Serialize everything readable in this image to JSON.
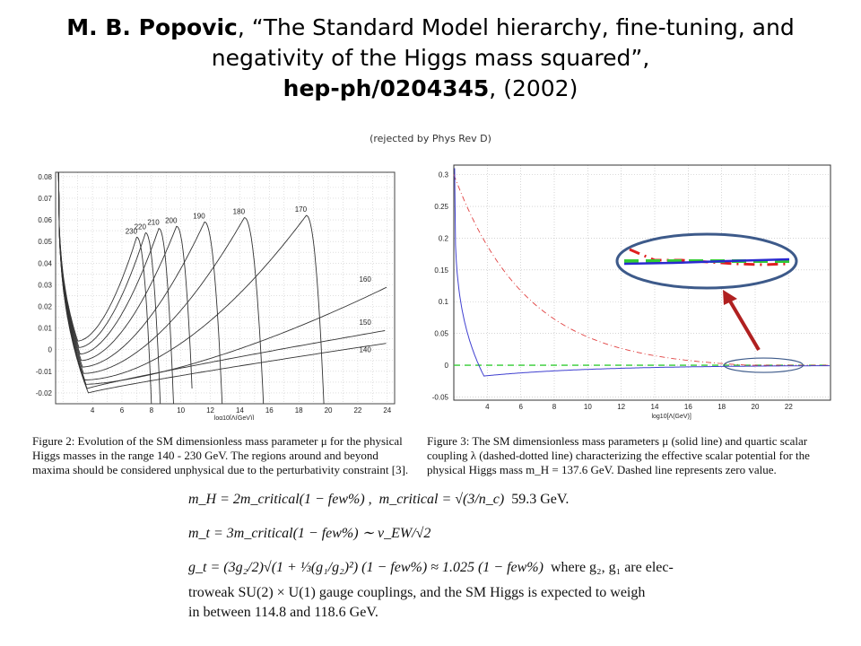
{
  "title": {
    "author": "M. B. Popovic",
    "comma": ",",
    "paper_title": "“The Standard Model hierarchy, fine-tuning, and negativity of the Higgs mass squared”,",
    "arxiv": "hep-ph/0204345",
    "year": ", (2002)"
  },
  "note": "(rejected by Phys Rev D)",
  "fig2_caption": "Figure 2: Evolution of the SM dimensionless mass parameter μ for the physical Higgs masses in the range 140 - 230 GeV. The regions around and beyond maxima should be considered unphysical due to the perturbativity constraint [3].",
  "fig3_caption": "Figure 3: The SM dimensionless mass parameters μ (solid line) and quartic scalar coupling λ (dashed-dotted line) characterizing the effective scalar potential for the physical Higgs mass m_H = 137.6 GeV. Dashed line represents zero value.",
  "eq1": {
    "lhs": "m_H = 2m_critical(1 − few%) ,",
    "mid": "m_critical = √(3/n_c)",
    "val": "59.3 GeV."
  },
  "eq2": "m_t = 3m_critical(1 − few%) ∼ v_EW/√2",
  "eq3": {
    "formula": "g_t = (3g₂/2)√(1 + ⅓(g₁/g₂)²) (1 − few%) ≈ 1.025 (1 − few%)",
    "tail": "where g₂, g₁ are elec-",
    "line2": "troweak SU(2) × U(1) gauge couplings, and the SM Higgs is expected to weigh",
    "line3": "in between 114.8 and 118.6 GeV."
  },
  "chart_data": [
    {
      "type": "line",
      "xlabel": "log10[Λ(GeV)]",
      "ylabel": "",
      "xlim": [
        1.5,
        24.5
      ],
      "ylim": [
        -0.025,
        0.082
      ],
      "xticks": [
        4,
        6,
        8,
        10,
        12,
        14,
        16,
        18,
        20,
        22,
        24
      ],
      "yticks": [
        -0.02,
        -0.01,
        0,
        0.01,
        0.02,
        0.03,
        0.04,
        0.05,
        0.06,
        0.07,
        0.08
      ],
      "grid": true,
      "curve_labels": [
        "230",
        "220",
        "210",
        "200",
        "190",
        "180",
        "170",
        "160",
        "150",
        "140"
      ],
      "series": [
        {
          "name": "230",
          "peak_x": 7.0,
          "peak_y": 0.052,
          "end_x": 8.0,
          "min_y": 0.004
        },
        {
          "name": "220",
          "peak_x": 7.6,
          "peak_y": 0.054,
          "end_x": 8.6,
          "min_y": 0.001
        },
        {
          "name": "210",
          "peak_x": 8.5,
          "peak_y": 0.056,
          "end_x": 9.5,
          "min_y": -0.002
        },
        {
          "name": "200",
          "peak_x": 9.7,
          "peak_y": 0.057,
          "end_x": 10.8,
          "min_y": -0.005
        },
        {
          "name": "190",
          "peak_x": 11.6,
          "peak_y": 0.059,
          "end_x": 12.8,
          "min_y": -0.008
        },
        {
          "name": "180",
          "peak_x": 14.3,
          "peak_y": 0.061,
          "end_x": 15.6,
          "min_y": -0.011
        },
        {
          "name": "170",
          "peak_x": 18.5,
          "peak_y": 0.062,
          "end_x": 19.7,
          "min_y": -0.014
        },
        {
          "name": "160",
          "end_y": 0.029,
          "min_y": -0.016
        },
        {
          "name": "150",
          "end_y": 0.009,
          "min_y": -0.018
        },
        {
          "name": "140",
          "end_y": 0.003,
          "min_y": -0.02
        }
      ]
    },
    {
      "type": "line",
      "xlabel": "log10[Λ(GeV)]",
      "ylabel": "",
      "xlim": [
        2,
        24.5
      ],
      "ylim": [
        -0.055,
        0.315
      ],
      "xticks": [
        4,
        6,
        8,
        10,
        12,
        14,
        16,
        18,
        20,
        22
      ],
      "yticks": [
        -0.05,
        0,
        0.05,
        0.1,
        0.15,
        0.2,
        0.25,
        0.3
      ],
      "grid": true,
      "series": [
        {
          "name": "μ (solid)",
          "color": "#4040d0",
          "min_y": -0.017,
          "min_x": 3.8
        },
        {
          "name": "λ (dashed-dotted)",
          "color": "#e04040",
          "start_y": 0.3,
          "zero_x": 19.5
        },
        {
          "name": "zero (dashed)",
          "color": "#33cc33",
          "value": 0
        }
      ],
      "annotation_colors": {
        "ellipse": "#3d5a8a",
        "arrow": "#b02020"
      }
    }
  ]
}
